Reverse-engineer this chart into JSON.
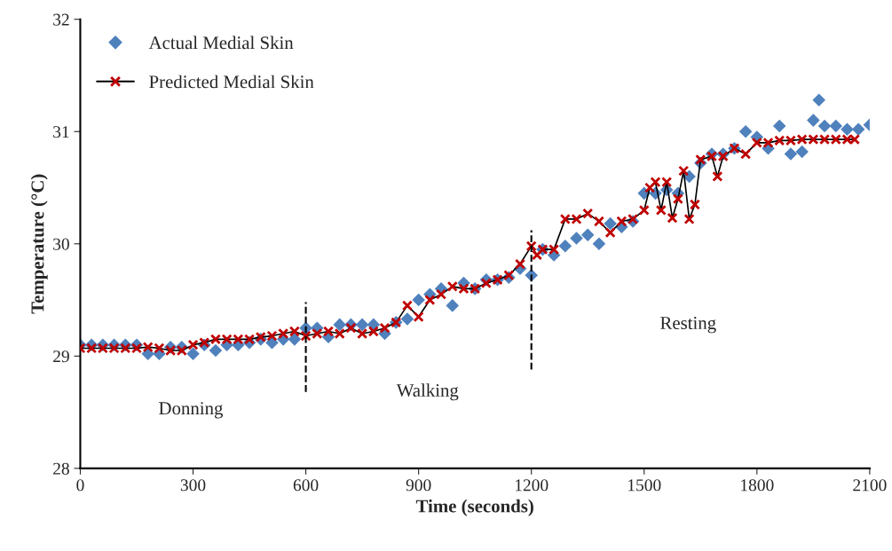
{
  "chart_data": {
    "type": "scatter",
    "xlabel": "Time (seconds)",
    "ylabel": "Temperature (°C)",
    "xlim": [
      0,
      2100
    ],
    "xticks": [
      0,
      300,
      600,
      900,
      1200,
      1500,
      1800,
      2100
    ],
    "ylim": [
      28,
      32
    ],
    "yticks": [
      28,
      29,
      30,
      31,
      32
    ],
    "grid": false,
    "legend": "top left",
    "series": [
      {
        "name": "Actual Medial Skin",
        "marker": "diamond",
        "color": "#4f81bd",
        "x": [
          0,
          30,
          60,
          90,
          120,
          150,
          180,
          210,
          240,
          270,
          300,
          330,
          360,
          390,
          420,
          450,
          480,
          510,
          540,
          570,
          600,
          630,
          660,
          690,
          720,
          750,
          780,
          810,
          840,
          870,
          900,
          930,
          960,
          990,
          1020,
          1050,
          1080,
          1110,
          1140,
          1170,
          1200,
          1230,
          1260,
          1290,
          1320,
          1350,
          1380,
          1410,
          1440,
          1470,
          1500,
          1530,
          1560,
          1590,
          1620,
          1650,
          1680,
          1710,
          1740,
          1770,
          1800,
          1830,
          1860,
          1890,
          1920,
          1950,
          1965,
          1980,
          2010,
          2040,
          2070,
          2100
        ],
        "values": [
          29.1,
          29.1,
          29.1,
          29.1,
          29.1,
          29.1,
          29.02,
          29.02,
          29.08,
          29.08,
          29.02,
          29.1,
          29.05,
          29.1,
          29.1,
          29.12,
          29.15,
          29.12,
          29.15,
          29.15,
          29.25,
          29.25,
          29.17,
          29.28,
          29.28,
          29.28,
          29.28,
          29.2,
          29.3,
          29.33,
          29.5,
          29.55,
          29.6,
          29.45,
          29.65,
          29.6,
          29.68,
          29.68,
          29.7,
          29.78,
          29.72,
          29.95,
          29.9,
          29.98,
          30.05,
          30.08,
          30.0,
          30.18,
          30.15,
          30.2,
          30.45,
          30.45,
          30.48,
          30.45,
          30.6,
          30.72,
          30.8,
          30.8,
          30.85,
          31.0,
          30.95,
          30.85,
          31.05,
          30.8,
          30.82,
          31.1,
          31.28,
          31.05,
          31.05,
          31.02,
          31.02,
          31.06
        ]
      },
      {
        "name": "Predicted Medial Skin",
        "type": "line",
        "marker": "cross",
        "line_style": "solid",
        "color": "#c00000",
        "x": [
          0,
          30,
          60,
          90,
          120,
          150,
          180,
          210,
          240,
          270,
          300,
          330,
          360,
          390,
          420,
          450,
          480,
          510,
          540,
          570,
          600,
          630,
          660,
          690,
          720,
          750,
          780,
          810,
          840,
          870,
          900,
          930,
          960,
          990,
          1020,
          1050,
          1080,
          1110,
          1140,
          1170,
          1200,
          1215,
          1230,
          1260,
          1290,
          1320,
          1350,
          1380,
          1410,
          1440,
          1470,
          1500,
          1515,
          1530,
          1545,
          1560,
          1575,
          1590,
          1605,
          1620,
          1635,
          1650,
          1680,
          1695,
          1710,
          1740,
          1770,
          1800,
          1830,
          1860,
          1890,
          1920,
          1950,
          1980,
          2010,
          2040,
          2060
        ],
        "values": [
          29.07,
          29.07,
          29.07,
          29.07,
          29.07,
          29.07,
          29.08,
          29.07,
          29.05,
          29.05,
          29.1,
          29.12,
          29.15,
          29.15,
          29.15,
          29.15,
          29.17,
          29.18,
          29.2,
          29.22,
          29.18,
          29.2,
          29.22,
          29.2,
          29.25,
          29.2,
          29.22,
          29.25,
          29.3,
          29.45,
          29.35,
          29.5,
          29.55,
          29.62,
          29.6,
          29.6,
          29.65,
          29.68,
          29.72,
          29.82,
          29.98,
          29.9,
          29.95,
          29.95,
          30.22,
          30.22,
          30.27,
          30.2,
          30.1,
          30.2,
          30.22,
          30.3,
          30.5,
          30.55,
          30.3,
          30.55,
          30.23,
          30.4,
          30.65,
          30.22,
          30.35,
          30.75,
          30.78,
          30.6,
          30.78,
          30.85,
          30.8,
          30.9,
          30.9,
          30.92,
          30.92,
          30.93,
          30.93,
          30.93,
          30.93,
          30.93,
          30.93
        ]
      }
    ],
    "ref_lines": [
      {
        "axis": "x",
        "value": 600,
        "color": "#000000",
        "line_style": "dashed"
      },
      {
        "axis": "x",
        "value": 1200,
        "color": "#000000",
        "line_style": "dashed"
      }
    ],
    "annotations": [
      "Donning",
      "Walking",
      "Resting"
    ]
  }
}
